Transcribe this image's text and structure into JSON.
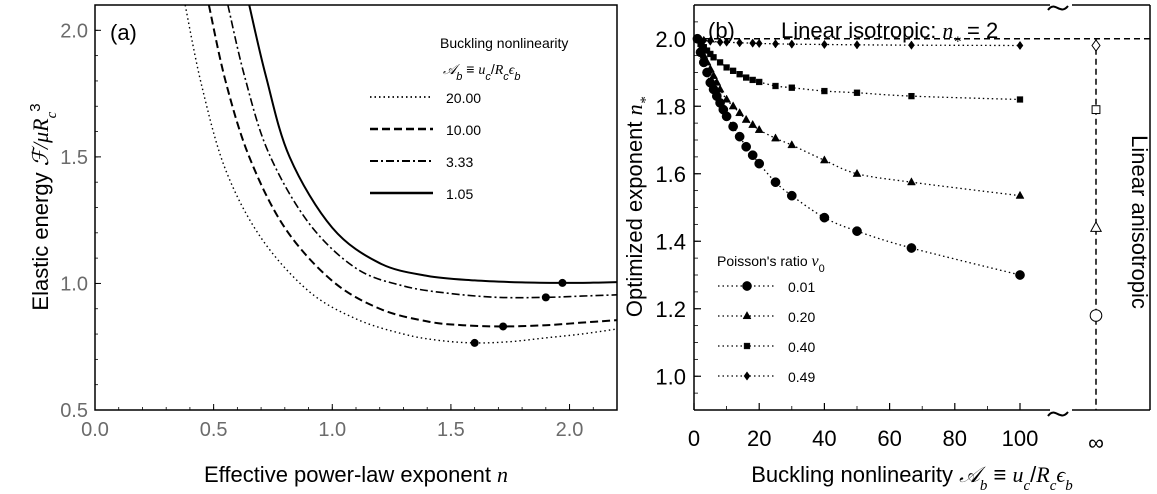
{
  "chart_data": [
    {
      "type": "line",
      "panel_label": "(a)",
      "xlabel": "Effective power-law exponent n",
      "ylabel": "Elastic energy ℱ/μR_c³",
      "xlim": [
        0.0,
        2.2
      ],
      "ylim": [
        0.5,
        2.1
      ],
      "xticks": [
        "0.0",
        "0.5",
        "1.0",
        "1.5",
        "2.0"
      ],
      "yticks": [
        "0.5",
        "1.0",
        "1.5",
        "2.0"
      ],
      "legend_title": "Buckling nonlinearity",
      "legend_title_math": "𝒜_b ≡ u_c/R_cϵ_b",
      "legend_position": "top-right",
      "series": [
        {
          "name": "20.00",
          "style": "dotted",
          "x": [
            0.38,
            0.45,
            0.55,
            0.7,
            0.9,
            1.1,
            1.3,
            1.45,
            1.6,
            1.75,
            1.9,
            2.05,
            2.2
          ],
          "y": [
            2.1,
            1.78,
            1.45,
            1.18,
            0.97,
            0.86,
            0.8,
            0.775,
            0.765,
            0.77,
            0.785,
            0.8,
            0.82
          ],
          "min_point": [
            1.6,
            0.765
          ]
        },
        {
          "name": "10.00",
          "style": "dashed",
          "x": [
            0.48,
            0.55,
            0.65,
            0.8,
            1.0,
            1.2,
            1.4,
            1.55,
            1.72,
            1.9,
            2.05,
            2.2
          ],
          "y": [
            2.1,
            1.8,
            1.5,
            1.22,
            1.01,
            0.9,
            0.85,
            0.835,
            0.83,
            0.835,
            0.845,
            0.855
          ],
          "min_point": [
            1.72,
            0.83
          ]
        },
        {
          "name": "3.33",
          "style": "dash-dot",
          "x": [
            0.56,
            0.63,
            0.73,
            0.9,
            1.1,
            1.3,
            1.5,
            1.7,
            1.9,
            2.05,
            2.2
          ],
          "y": [
            2.1,
            1.82,
            1.52,
            1.24,
            1.06,
            0.99,
            0.96,
            0.945,
            0.945,
            0.95,
            0.955
          ],
          "min_point": [
            1.9,
            0.945
          ]
        },
        {
          "name": "1.05",
          "style": "solid",
          "x": [
            0.65,
            0.72,
            0.82,
            1.0,
            1.2,
            1.4,
            1.6,
            1.8,
            1.97,
            2.1,
            2.2
          ],
          "y": [
            2.1,
            1.82,
            1.5,
            1.22,
            1.08,
            1.03,
            1.012,
            1.004,
            1.002,
            1.003,
            1.005
          ],
          "min_point": [
            1.97,
            1.002
          ]
        }
      ]
    },
    {
      "type": "scatter",
      "panel_label": "(b)",
      "xlabel": "Buckling nonlinearity 𝒜_b ≡ u_c/R_cϵ_b",
      "ylabel": "Optimized exponent n_*",
      "xlim": [
        0,
        100
      ],
      "ylim": [
        0.9,
        2.1
      ],
      "xticks": [
        "0",
        "20",
        "40",
        "60",
        "80",
        "100"
      ],
      "x_infinity_label": "∞",
      "yticks": [
        "1.0",
        "1.2",
        "1.4",
        "1.6",
        "1.8",
        "2.0"
      ],
      "annotation_top": "Linear isotropic: n_* = 2",
      "annotation_right": "Linear anisotropic",
      "legend_title": "Poisson's ratio ν₀",
      "legend_position": "bottom-left",
      "series": [
        {
          "name": "0.01",
          "marker": "circle",
          "x": [
            1.05,
            2,
            3,
            4,
            5,
            6,
            7,
            8,
            9,
            10,
            12,
            14,
            16,
            18,
            20,
            25,
            30,
            40,
            50,
            66.7,
            100
          ],
          "y": [
            2.0,
            1.96,
            1.93,
            1.9,
            1.87,
            1.85,
            1.83,
            1.81,
            1.79,
            1.77,
            1.74,
            1.71,
            1.68,
            1.655,
            1.63,
            1.575,
            1.535,
            1.47,
            1.43,
            1.38,
            1.3
          ],
          "infinity_value": 1.18
        },
        {
          "name": "0.20",
          "marker": "triangle",
          "x": [
            1.05,
            2,
            3,
            4,
            5,
            6,
            7,
            8,
            10,
            12,
            14,
            16,
            18,
            20,
            25,
            30,
            40,
            50,
            66.7,
            100
          ],
          "y": [
            2.0,
            1.97,
            1.95,
            1.93,
            1.91,
            1.89,
            1.87,
            1.85,
            1.82,
            1.8,
            1.78,
            1.76,
            1.745,
            1.73,
            1.705,
            1.685,
            1.64,
            1.6,
            1.575,
            1.535
          ],
          "infinity_value": 1.44
        },
        {
          "name": "0.40",
          "marker": "square",
          "x": [
            1.05,
            2,
            3,
            4,
            5,
            6,
            8,
            10,
            12,
            14,
            16,
            18,
            20,
            25,
            30,
            40,
            50,
            66.7,
            100
          ],
          "y": [
            2.0,
            1.985,
            1.975,
            1.965,
            1.955,
            1.945,
            1.93,
            1.915,
            1.905,
            1.895,
            1.885,
            1.878,
            1.872,
            1.86,
            1.855,
            1.845,
            1.84,
            1.83,
            1.82
          ],
          "infinity_value": 1.79
        },
        {
          "name": "0.49",
          "marker": "diamond",
          "x": [
            1.05,
            3,
            5,
            8,
            10,
            14,
            18,
            20,
            25,
            30,
            40,
            50,
            66.7,
            100
          ],
          "y": [
            2.0,
            1.995,
            1.993,
            1.99,
            1.99,
            1.988,
            1.987,
            1.986,
            1.985,
            1.984,
            1.983,
            1.982,
            1.981,
            1.98
          ],
          "infinity_value": 1.98
        }
      ]
    }
  ]
}
